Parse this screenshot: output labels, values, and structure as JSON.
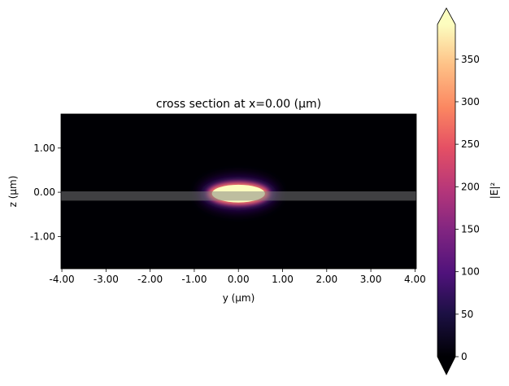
{
  "chart_data": {
    "type": "heatmap",
    "title": "cross section at x=0.00 (µm)",
    "xlabel": "y (µm)",
    "ylabel": "z (µm)",
    "xlim": [
      -4.02,
      4.03
    ],
    "ylim": [
      -1.73,
      1.77
    ],
    "xticks": [
      -4,
      -3,
      -2,
      -1,
      0,
      1,
      2,
      3,
      4
    ],
    "xtick_labels": [
      "-4.00",
      "-3.00",
      "-2.00",
      "-1.00",
      "0.00",
      "1.00",
      "2.00",
      "3.00",
      "4.00"
    ],
    "yticks": [
      1,
      0,
      -1
    ],
    "ytick_labels": [
      "1.00",
      "0.00",
      "-1.00"
    ],
    "colormap": "magma",
    "colorbar": {
      "label": "|E|²",
      "range": [
        0,
        391
      ],
      "ticks": [
        0,
        50,
        100,
        150,
        200,
        250,
        300,
        350
      ],
      "tick_labels": [
        "0",
        "50",
        "100",
        "150",
        "200",
        "250",
        "300",
        "350"
      ],
      "extend": "both"
    },
    "mode": {
      "center_y": 0.0,
      "center_z": -0.03,
      "saturated_half_width_y": 0.6,
      "saturated_half_height_z": 0.2
    },
    "structure": {
      "color": "#808080",
      "y_range": [
        -4.02,
        4.03
      ],
      "z_range": [
        -0.19,
        0.02
      ]
    }
  }
}
